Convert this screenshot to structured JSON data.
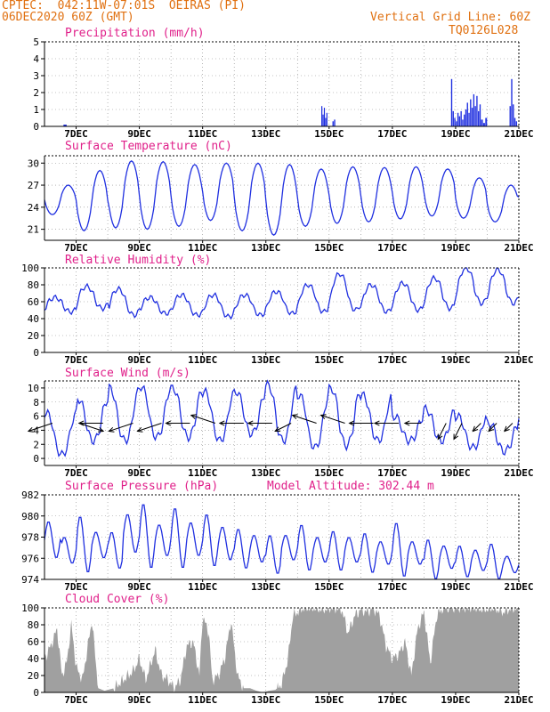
{
  "header": {
    "line1_left": "CPTEC:  042:11W-07:01S  OEIRAS (PI)",
    "line2_left": "06DEC2020 60Z (GMT)",
    "line1_right": "Vertical Grid Line: 60Z",
    "line2_right": "TQ0126L028"
  },
  "colors": {
    "line": "#2030e0",
    "bar": "#2030e0",
    "cloud": "#a0a0a0",
    "title": "#e0208a",
    "header": "#e07010"
  },
  "chart_data": [
    {
      "type": "bar",
      "title": "Precipitation (mm/h)",
      "ylim": [
        0,
        5
      ],
      "yticks": [
        0,
        1,
        2,
        3,
        4,
        5
      ],
      "xticks": [
        "7DEC",
        "9DEC",
        "11DEC",
        "13DEC",
        "15DEC",
        "17DEC",
        "19DEC",
        "21DEC"
      ],
      "xlim_days": [
        6.0,
        21.0
      ],
      "bursts": [
        {
          "start": 14.75,
          "end": 14.95,
          "values": [
            1.2,
            0.7,
            1.1,
            0.5,
            0.8
          ]
        },
        {
          "start": 15.1,
          "end": 15.2,
          "values": [
            0.3,
            0.4
          ]
        },
        {
          "start": 18.85,
          "end": 19.3,
          "values": [
            2.8,
            0.9,
            0.5,
            0.3,
            0.8,
            0.6,
            0.9,
            0.4,
            0.7
          ]
        },
        {
          "start": 19.3,
          "end": 19.8,
          "values": [
            1.0,
            1.4,
            0.8,
            1.6,
            1.1,
            1.9,
            1.2,
            1.8,
            0.9,
            1.3
          ]
        },
        {
          "start": 19.8,
          "end": 20.0,
          "values": [
            0.4,
            0.2,
            0.5
          ]
        },
        {
          "start": 20.7,
          "end": 20.95,
          "values": [
            1.2,
            2.8,
            1.3,
            0.5,
            0.3
          ]
        }
      ]
    },
    {
      "type": "line",
      "title": "Surface Temperature (nC)",
      "ylim": [
        19.5,
        31
      ],
      "yticks": [
        21,
        24,
        27,
        30
      ],
      "xticks": [
        "7DEC",
        "9DEC",
        "11DEC",
        "13DEC",
        "15DEC",
        "17DEC",
        "19DEC",
        "21DEC"
      ],
      "daily_max": [
        27.0,
        29.0,
        30.3,
        30.2,
        29.8,
        30.0,
        30.0,
        29.8,
        29.2,
        29.5,
        29.4,
        29.5,
        29.2,
        28.0,
        27.0,
        27.2
      ],
      "daily_min": [
        23.0,
        20.8,
        21.2,
        21.0,
        21.4,
        22.2,
        20.8,
        20.2,
        21.4,
        21.8,
        22.0,
        22.4,
        22.8,
        22.5,
        22.0,
        23.5
      ]
    },
    {
      "type": "line",
      "title": "Relative Humidity (%)",
      "ylim": [
        0,
        100
      ],
      "yticks": [
        0,
        20,
        40,
        60,
        80,
        100
      ],
      "xticks": [
        "7DEC",
        "9DEC",
        "11DEC",
        "13DEC",
        "15DEC",
        "17DEC",
        "19DEC",
        "21DEC"
      ],
      "daily_max": [
        65,
        78,
        75,
        65,
        68,
        68,
        68,
        72,
        80,
        93,
        80,
        82,
        88,
        100,
        98,
        92
      ],
      "daily_min": [
        48,
        52,
        44,
        46,
        44,
        42,
        44,
        46,
        48,
        50,
        48,
        50,
        52,
        58,
        58,
        60
      ]
    },
    {
      "type": "line",
      "title": "Surface Wind (m/s)",
      "ylim": [
        -1,
        11
      ],
      "yticks": [
        0,
        2,
        4,
        6,
        8,
        10
      ],
      "xticks": [
        "7DEC",
        "9DEC",
        "11DEC",
        "13DEC",
        "15DEC",
        "17DEC",
        "19DEC",
        "21DEC"
      ],
      "daily_max": [
        6.5,
        8.5,
        10.0,
        10.2,
        10.0,
        9.5,
        9.5,
        10.5,
        9.0,
        10.0,
        9.0,
        6.0,
        7.0,
        6.0,
        5.0,
        6.0
      ],
      "daily_min": [
        0.5,
        2.5,
        2.5,
        3.0,
        3.0,
        2.5,
        3.5,
        2.5,
        1.5,
        1.8,
        2.5,
        2.5,
        2.5,
        1.5,
        1.0,
        2.5
      ],
      "arrows": [
        {
          "day": 6.25,
          "u": -3,
          "v": -1
        },
        {
          "day": 7.1,
          "u": 3,
          "v": -1
        },
        {
          "day": 7.85,
          "u": -3,
          "v": 0
        },
        {
          "day": 8.8,
          "u": -3,
          "v": -1
        },
        {
          "day": 9.7,
          "u": -3,
          "v": -1
        },
        {
          "day": 10.6,
          "u": -3,
          "v": 0
        },
        {
          "day": 11.4,
          "u": -3,
          "v": 1
        },
        {
          "day": 12.3,
          "u": -3,
          "v": 0
        },
        {
          "day": 13.2,
          "u": -3,
          "v": 0
        },
        {
          "day": 13.8,
          "u": -2,
          "v": -1
        },
        {
          "day": 14.6,
          "u": -3,
          "v": 1
        },
        {
          "day": 15.5,
          "u": -3,
          "v": 1
        },
        {
          "day": 16.4,
          "u": -3,
          "v": 0
        },
        {
          "day": 17.2,
          "u": -3,
          "v": 0
        },
        {
          "day": 17.9,
          "u": -2,
          "v": 0
        },
        {
          "day": 18.7,
          "u": -1,
          "v": -2
        },
        {
          "day": 19.2,
          "u": -1,
          "v": -2
        },
        {
          "day": 19.8,
          "u": -1,
          "v": -1
        },
        {
          "day": 20.3,
          "u": -1,
          "v": -1
        },
        {
          "day": 20.8,
          "u": -1,
          "v": -1
        }
      ]
    },
    {
      "type": "line",
      "title": "Surface Pressure (hPa)",
      "subtitle": "Model Altitude: 302.44 m",
      "ylim": [
        974,
        982
      ],
      "yticks": [
        974,
        976,
        978,
        980,
        982
      ],
      "xticks": [
        "7DEC",
        "9DEC",
        "11DEC",
        "13DEC",
        "15DEC",
        "17DEC",
        "19DEC",
        "21DEC"
      ],
      "twice_daily_max": [
        979.5,
        978.0,
        980.0,
        978.5,
        978.5,
        980.2,
        981.2,
        979.2,
        980.8,
        979.4,
        980.2,
        979.0,
        978.8,
        978.2,
        978.2,
        978.2,
        979.2,
        978.0,
        978.6,
        978.0,
        978.4,
        977.6,
        979.4,
        977.6,
        977.8,
        977.2,
        977.2,
        976.8,
        977.4,
        976.2,
        976.8,
        976.0
      ],
      "twice_daily_min": [
        976.0,
        975.5,
        974.6,
        976.0,
        975.0,
        976.5,
        975.0,
        976.2,
        975.0,
        976.2,
        975.2,
        975.8,
        975.0,
        975.6,
        974.5,
        975.8,
        974.8,
        975.6,
        974.8,
        975.6,
        974.6,
        975.4,
        974.2,
        975.4,
        974.0,
        975.0,
        974.2,
        974.8,
        974.0,
        974.6,
        974.0,
        974.6
      ]
    },
    {
      "type": "area",
      "title": "Cloud Cover (%)",
      "ylim": [
        0,
        100
      ],
      "yticks": [
        0,
        20,
        40,
        60,
        80,
        100
      ],
      "xticks": [
        "7DEC",
        "9DEC",
        "11DEC",
        "13DEC",
        "15DEC",
        "17DEC",
        "19DEC",
        "21DEC"
      ],
      "profile": [
        [
          6.0,
          40
        ],
        [
          6.2,
          55
        ],
        [
          6.4,
          75
        ],
        [
          6.55,
          20
        ],
        [
          6.7,
          35
        ],
        [
          6.85,
          80
        ],
        [
          7.0,
          30
        ],
        [
          7.2,
          15
        ],
        [
          7.35,
          50
        ],
        [
          7.5,
          85
        ],
        [
          7.7,
          5
        ],
        [
          7.9,
          2
        ],
        [
          8.2,
          5
        ],
        [
          8.5,
          15
        ],
        [
          8.8,
          25
        ],
        [
          9.0,
          40
        ],
        [
          9.2,
          15
        ],
        [
          9.5,
          50
        ],
        [
          9.7,
          20
        ],
        [
          9.9,
          15
        ],
        [
          10.1,
          5
        ],
        [
          10.3,
          15
        ],
        [
          10.5,
          55
        ],
        [
          10.7,
          60
        ],
        [
          10.9,
          20
        ],
        [
          11.0,
          90
        ],
        [
          11.2,
          70
        ],
        [
          11.3,
          15
        ],
        [
          11.5,
          20
        ],
        [
          11.7,
          40
        ],
        [
          11.9,
          85
        ],
        [
          12.1,
          20
        ],
        [
          12.3,
          5
        ],
        [
          12.5,
          5
        ],
        [
          12.7,
          2
        ],
        [
          12.9,
          0
        ],
        [
          13.1,
          2
        ],
        [
          13.3,
          3
        ],
        [
          13.5,
          10
        ],
        [
          13.7,
          40
        ],
        [
          13.85,
          90
        ],
        [
          14.0,
          95
        ],
        [
          14.2,
          100
        ],
        [
          14.5,
          100
        ],
        [
          14.8,
          98
        ],
        [
          15.1,
          100
        ],
        [
          15.4,
          98
        ],
        [
          15.6,
          70
        ],
        [
          15.8,
          90
        ],
        [
          16.0,
          98
        ],
        [
          16.2,
          95
        ],
        [
          16.4,
          100
        ],
        [
          16.6,
          90
        ],
        [
          16.8,
          55
        ],
        [
          17.0,
          40
        ],
        [
          17.2,
          45
        ],
        [
          17.4,
          60
        ],
        [
          17.6,
          20
        ],
        [
          17.8,
          75
        ],
        [
          18.0,
          95
        ],
        [
          18.2,
          35
        ],
        [
          18.4,
          90
        ],
        [
          18.6,
          100
        ],
        [
          18.8,
          100
        ],
        [
          19.0,
          100
        ],
        [
          19.3,
          100
        ],
        [
          19.6,
          100
        ],
        [
          19.9,
          98
        ],
        [
          20.2,
          100
        ],
        [
          20.5,
          95
        ],
        [
          20.8,
          100
        ],
        [
          21.0,
          98
        ]
      ]
    }
  ]
}
